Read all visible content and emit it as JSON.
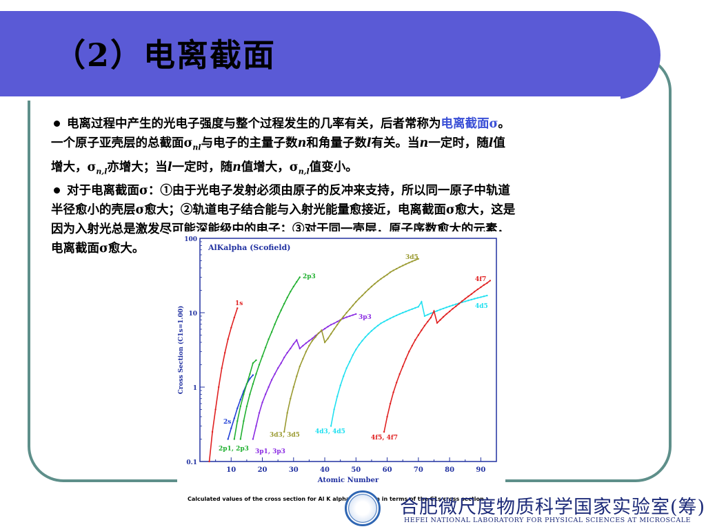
{
  "title": "（2）电离截面",
  "bullet1": {
    "t1": "电离过程中产生的光电子强度与整个过程发生的几率有关，后者常称为",
    "t1_hl": "电离截面σ",
    "t1_end": "。",
    "t2a": "一个原子亚壳层的总截面σ",
    "t2_sub1": "nl",
    "t2b": "与电子的主量子数",
    "t2_n": "n",
    "t2c": "和角量子数",
    "t2_l": "l",
    "t2d": "有关。当",
    "t2_n2": "n",
    "t2e": "一定时，随",
    "t2_l2": "l",
    "t2f": "值",
    "t3a": "增大，σ",
    "t3_sub1": "n,l",
    "t3b": "亦增大；当",
    "t3_l": "l",
    "t3c": "一定时，随",
    "t3_n": "n",
    "t3d": "值增大，σ",
    "t3_sub2": "n,l",
    "t3e": "值变小。"
  },
  "bullet2": {
    "line1": "对于电离截面σ：①由于光电子发射必须由原子的反冲来支持，所以同一原子中轨道",
    "line2": "半径愈小的壳层σ愈大；②轨道电子结合能与入射光能量愈接近，电离截面σ愈大，这是",
    "line3": "因为入射光总是激发尽可能深能级中的电子；③对于同一壳层，原子序数愈大的元素，",
    "line4": "电离截面σ愈大。"
  },
  "chart_data": {
    "type": "line",
    "title": "AlKalpha (Scofield)",
    "xlabel": "Atomic Number",
    "ylabel": "Cross Section (C1s=1.00)",
    "xlim": [
      0,
      95
    ],
    "ylim": [
      0.1,
      100
    ],
    "yscale": "log",
    "x_ticks": [
      "10",
      "20",
      "30",
      "40",
      "50",
      "60",
      "70",
      "80",
      "90"
    ],
    "y_ticks": [
      "0.1",
      "1",
      "10",
      "100"
    ],
    "series": [
      {
        "name": "1s",
        "color": "#e02020",
        "points": [
          [
            3,
            0.1
          ],
          [
            4,
            0.25
          ],
          [
            5,
            0.5
          ],
          [
            6,
            1.0
          ],
          [
            7,
            1.8
          ],
          [
            8,
            2.9
          ],
          [
            9,
            4.4
          ],
          [
            10,
            6.3
          ],
          [
            11,
            8.6
          ],
          [
            12,
            11.5
          ]
        ]
      },
      {
        "name": "2s",
        "color": "#1f3fd6",
        "points": [
          [
            9,
            0.2
          ],
          [
            10,
            0.28
          ],
          [
            11,
            0.38
          ],
          [
            12,
            0.52
          ],
          [
            13,
            0.68
          ],
          [
            14,
            0.88
          ],
          [
            15,
            1.1
          ],
          [
            16,
            1.3
          ],
          [
            17,
            1.45
          ]
        ]
      },
      {
        "name": "2p3",
        "color": "#20b030",
        "points": [
          [
            13,
            0.2
          ],
          [
            14,
            0.35
          ],
          [
            15,
            0.55
          ],
          [
            16,
            0.8
          ],
          [
            17,
            1.1
          ],
          [
            18,
            1.5
          ],
          [
            19,
            2.0
          ],
          [
            20,
            2.6
          ],
          [
            21,
            3.4
          ],
          [
            22,
            4.4
          ],
          [
            23,
            5.5
          ],
          [
            24,
            7.0
          ],
          [
            25,
            8.8
          ],
          [
            26,
            10.8
          ],
          [
            27,
            13.2
          ],
          [
            28,
            16.0
          ],
          [
            29,
            19.2
          ],
          [
            30,
            22.5
          ],
          [
            31,
            26.0
          ],
          [
            32,
            30.0
          ]
        ]
      },
      {
        "name": "2p1, 2p3",
        "color": "#20b030",
        "points": [
          [
            11,
            0.2
          ],
          [
            12,
            0.35
          ],
          [
            13,
            0.55
          ],
          [
            14,
            0.8
          ],
          [
            15,
            1.1
          ],
          [
            16,
            1.5
          ],
          [
            17,
            2.1
          ],
          [
            18,
            2.3
          ]
        ]
      },
      {
        "name": "3p3",
        "color": "#8a2be2",
        "points": [
          [
            17,
            0.2
          ],
          [
            18,
            0.3
          ],
          [
            19,
            0.45
          ],
          [
            20,
            0.62
          ],
          [
            21,
            0.8
          ],
          [
            22,
            1.0
          ],
          [
            23,
            1.25
          ],
          [
            24,
            1.5
          ],
          [
            25,
            1.8
          ],
          [
            26,
            2.1
          ],
          [
            27,
            2.5
          ],
          [
            28,
            2.9
          ],
          [
            29,
            3.3
          ],
          [
            30,
            3.8
          ],
          [
            31,
            4.3
          ],
          [
            32,
            3.3
          ],
          [
            33,
            3.6
          ],
          [
            34,
            3.9
          ],
          [
            35,
            4.2
          ],
          [
            36,
            4.5
          ],
          [
            37,
            4.9
          ],
          [
            38,
            5.3
          ],
          [
            39,
            5.7
          ],
          [
            40,
            6.1
          ],
          [
            41,
            6.5
          ],
          [
            42,
            6.9
          ],
          [
            43,
            7.2
          ],
          [
            44,
            7.6
          ],
          [
            45,
            8.0
          ],
          [
            46,
            8.4
          ],
          [
            47,
            8.7
          ],
          [
            48,
            9.0
          ],
          [
            49,
            9.3
          ],
          [
            50,
            9.6
          ]
        ]
      },
      {
        "name": "3d5",
        "color": "#9a9a30",
        "points": [
          [
            27,
            0.25
          ],
          [
            28,
            0.45
          ],
          [
            29,
            0.7
          ],
          [
            30,
            1.0
          ],
          [
            31,
            1.4
          ],
          [
            32,
            1.9
          ],
          [
            33,
            2.4
          ],
          [
            34,
            3.0
          ],
          [
            35,
            3.6
          ],
          [
            36,
            4.2
          ],
          [
            37,
            4.7
          ],
          [
            38,
            5.3
          ],
          [
            39,
            5.8
          ],
          [
            40,
            4.0
          ],
          [
            41,
            4.5
          ],
          [
            42,
            5.2
          ],
          [
            43,
            6.0
          ],
          [
            44,
            6.9
          ],
          [
            45,
            7.9
          ],
          [
            46,
            8.9
          ],
          [
            47,
            10.0
          ],
          [
            48,
            11.2
          ],
          [
            49,
            12.5
          ],
          [
            50,
            14.0
          ],
          [
            51,
            15.5
          ],
          [
            52,
            17.0
          ],
          [
            53,
            18.8
          ],
          [
            54,
            20.6
          ],
          [
            55,
            22.5
          ],
          [
            56,
            24.5
          ],
          [
            57,
            26.5
          ],
          [
            58,
            28.5
          ],
          [
            59,
            30.5
          ],
          [
            60,
            32.5
          ],
          [
            61,
            35.0
          ],
          [
            62,
            37.0
          ],
          [
            63,
            39.0
          ],
          [
            64,
            41.0
          ],
          [
            65,
            43.0
          ],
          [
            66,
            45.0
          ],
          [
            67,
            47.0
          ],
          [
            68,
            49.0
          ],
          [
            69,
            51.0
          ],
          [
            70,
            53.0
          ]
        ]
      },
      {
        "name": "4d5",
        "color": "#20e0f0",
        "points": [
          [
            42,
            0.3
          ],
          [
            43,
            0.5
          ],
          [
            44,
            0.75
          ],
          [
            45,
            1.05
          ],
          [
            46,
            1.4
          ],
          [
            47,
            1.8
          ],
          [
            48,
            2.2
          ],
          [
            49,
            2.7
          ],
          [
            50,
            3.2
          ],
          [
            51,
            3.7
          ],
          [
            52,
            4.2
          ],
          [
            53,
            4.7
          ],
          [
            54,
            5.2
          ],
          [
            55,
            5.7
          ],
          [
            56,
            6.2
          ],
          [
            57,
            6.7
          ],
          [
            58,
            7.2
          ],
          [
            59,
            7.6
          ],
          [
            60,
            8.0
          ],
          [
            61,
            8.4
          ],
          [
            62,
            8.8
          ],
          [
            63,
            9.2
          ],
          [
            64,
            9.6
          ],
          [
            65,
            10.0
          ],
          [
            66,
            10.4
          ],
          [
            67,
            10.8
          ],
          [
            68,
            11.2
          ],
          [
            69,
            11.6
          ],
          [
            70,
            12.0
          ],
          [
            71,
            14.0
          ],
          [
            72,
            9.0
          ],
          [
            73,
            9.4
          ],
          [
            74,
            9.8
          ],
          [
            75,
            10.2
          ],
          [
            76,
            10.6
          ],
          [
            77,
            11.0
          ],
          [
            78,
            11.4
          ],
          [
            79,
            11.8
          ],
          [
            80,
            12.2
          ],
          [
            81,
            12.6
          ],
          [
            82,
            13.0
          ],
          [
            83,
            13.4
          ],
          [
            84,
            13.8
          ],
          [
            85,
            14.2
          ],
          [
            86,
            14.6
          ],
          [
            87,
            15.0
          ],
          [
            88,
            15.4
          ],
          [
            89,
            15.8
          ],
          [
            90,
            16.2
          ],
          [
            91,
            16.6
          ],
          [
            92,
            17.0
          ]
        ]
      },
      {
        "name": "4f7",
        "color": "#e02020",
        "points": [
          [
            59,
            0.25
          ],
          [
            60,
            0.4
          ],
          [
            61,
            0.6
          ],
          [
            62,
            0.85
          ],
          [
            63,
            1.15
          ],
          [
            64,
            1.5
          ],
          [
            65,
            1.9
          ],
          [
            66,
            2.4
          ],
          [
            67,
            3.0
          ],
          [
            68,
            3.6
          ],
          [
            69,
            4.3
          ],
          [
            70,
            5.0
          ],
          [
            71,
            5.8
          ],
          [
            72,
            6.7
          ],
          [
            73,
            7.6
          ],
          [
            74,
            8.6
          ],
          [
            75,
            10.5
          ],
          [
            76,
            7.3
          ],
          [
            77,
            8.0
          ],
          [
            78,
            8.8
          ],
          [
            79,
            9.6
          ],
          [
            80,
            10.4
          ],
          [
            81,
            11.3
          ],
          [
            82,
            12.2
          ],
          [
            83,
            13.2
          ],
          [
            84,
            14.3
          ],
          [
            85,
            15.4
          ],
          [
            86,
            16.6
          ],
          [
            87,
            17.8
          ],
          [
            88,
            19.2
          ],
          [
            89,
            20.6
          ],
          [
            90,
            22.0
          ],
          [
            91,
            23.6
          ],
          [
            92,
            25.0
          ],
          [
            93,
            27.0
          ]
        ]
      }
    ],
    "labels": [
      "1s",
      "2s",
      "2p3",
      "2p1, 2p3",
      "3p3",
      "3p1, 3p3",
      "3d5",
      "3d3, 3d5",
      "4d5",
      "4d3, 4d5",
      "4f7",
      "4f5, 4f7"
    ]
  },
  "caption": "Calculated values of the cross section for Al K alpha radiation in terms of the C1s cross section",
  "lab": {
    "cn": "合肥微尺度物质科学国家实验室(筹)",
    "en": "HEFEI NATIONAL LABORATORY FOR PHYSICAL SCIENCES AT MICROSCALE"
  }
}
